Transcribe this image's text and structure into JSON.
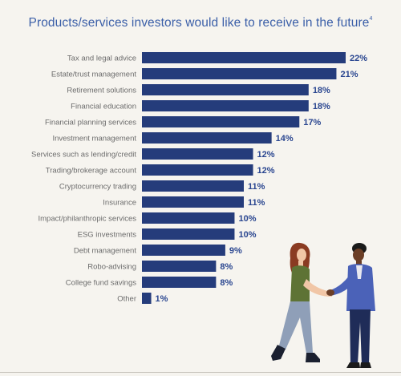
{
  "chart_data": {
    "type": "bar",
    "orientation": "horizontal",
    "title": "Products/services investors would like to receive in the future",
    "title_footnote": "4",
    "categories": [
      "Tax and legal advice",
      "Estate/trust management",
      "Retirement solutions",
      "Financial education",
      "Financial planning services",
      "Investment management",
      "Services such as lending/credit",
      "Trading/brokerage account",
      "Cryptocurrency trading",
      "Insurance",
      "Impact/philanthropic services",
      "ESG investments",
      "Debt management",
      "Robo-advising",
      "College fund savings",
      "Other"
    ],
    "values": [
      22,
      21,
      18,
      18,
      17,
      14,
      12,
      12,
      11,
      11,
      10,
      10,
      9,
      8,
      8,
      1
    ],
    "value_labels": [
      "22%",
      "21%",
      "18%",
      "18%",
      "17%",
      "14%",
      "12%",
      "12%",
      "11%",
      "11%",
      "10%",
      "10%",
      "9%",
      "8%",
      "8%",
      "1%"
    ],
    "unit": "%",
    "xlim": [
      0,
      22
    ],
    "grid": false,
    "legend": "none",
    "colors": {
      "bar": "#253c7b",
      "value_label": "#2a4690",
      "category_label": "#6c6c6c",
      "title": "#3b5fa8",
      "background": "#f6f4ef"
    }
  },
  "illustration": {
    "description_icon": "handshake-illustration"
  }
}
